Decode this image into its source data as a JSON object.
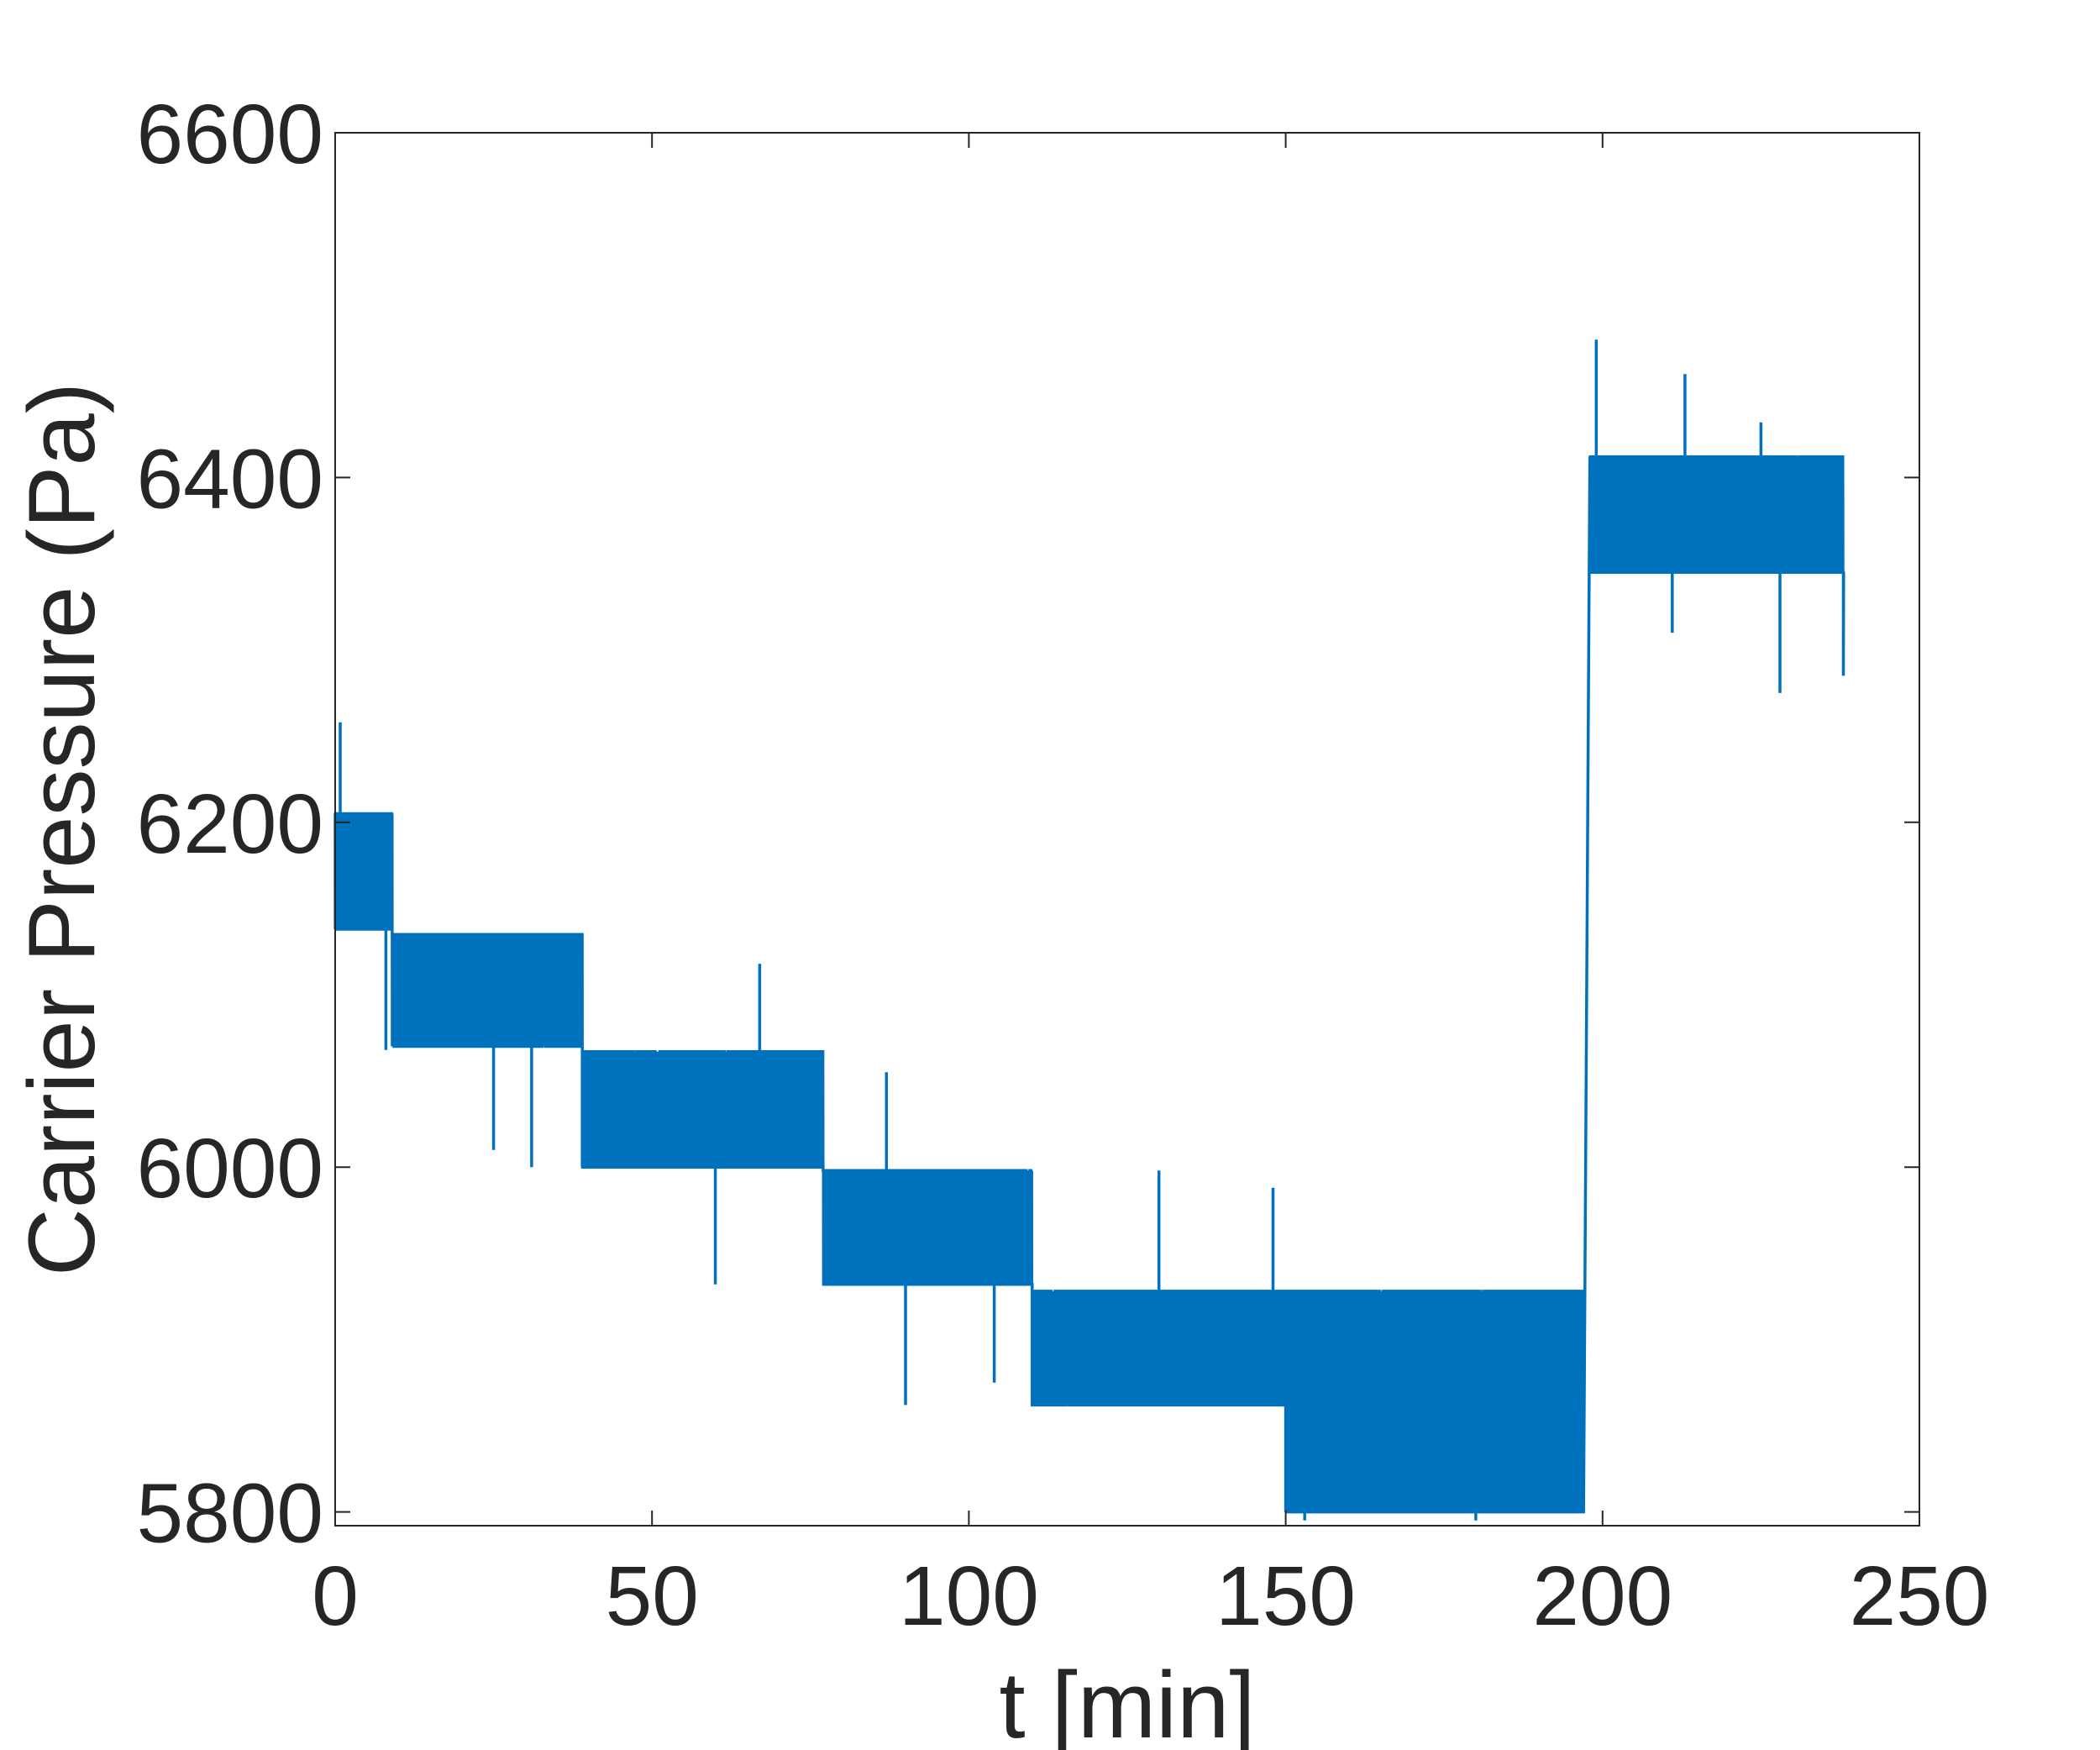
{
  "chart_data": {
    "type": "line",
    "title": "",
    "xlabel": "t [min]",
    "ylabel": "Carrier Pressure (Pa)",
    "xlim": [
      0,
      250
    ],
    "ylim": [
      5792,
      6600
    ],
    "x_ticks": [
      0,
      50,
      100,
      150,
      200,
      250
    ],
    "y_ticks": [
      5800,
      6000,
      6200,
      6400,
      6600
    ],
    "grid": false,
    "line_color": "#0072BD",
    "series_segments": [
      {
        "t_start": 0,
        "t_end": 9,
        "low": 6138,
        "high": 6205
      },
      {
        "t_start": 9,
        "t_end": 39,
        "low": 6070,
        "high": 6135
      },
      {
        "t_start": 39,
        "t_end": 77,
        "low": 6000,
        "high": 6067
      },
      {
        "t_start": 77,
        "t_end": 110,
        "low": 5932,
        "high": 5998
      },
      {
        "t_start": 110,
        "t_end": 150,
        "low": 5862,
        "high": 5928
      },
      {
        "t_start": 150,
        "t_end": 197,
        "low": 5800,
        "high": 5928
      },
      {
        "t_start": 198,
        "t_end": 238,
        "low": 6345,
        "high": 6412
      }
    ],
    "spikes": [
      {
        "t": 0.8,
        "value": 6258
      },
      {
        "t": 8,
        "value": 6068
      },
      {
        "t": 25,
        "value": 6010
      },
      {
        "t": 31,
        "value": 6000
      },
      {
        "t": 48,
        "value": 6000
      },
      {
        "t": 60,
        "value": 5932
      },
      {
        "t": 67,
        "value": 6118
      },
      {
        "t": 87,
        "value": 6055
      },
      {
        "t": 90,
        "value": 5862
      },
      {
        "t": 104,
        "value": 5875
      },
      {
        "t": 130,
        "value": 5998
      },
      {
        "t": 148,
        "value": 5988
      },
      {
        "t": 153,
        "value": 5795
      },
      {
        "t": 159,
        "value": 5805
      },
      {
        "t": 180,
        "value": 5795
      },
      {
        "t": 199,
        "value": 6480
      },
      {
        "t": 213,
        "value": 6460
      },
      {
        "t": 211,
        "value": 6310
      },
      {
        "t": 225,
        "value": 6432
      },
      {
        "t": 228,
        "value": 6275
      },
      {
        "t": 238,
        "value": 6285
      }
    ]
  }
}
